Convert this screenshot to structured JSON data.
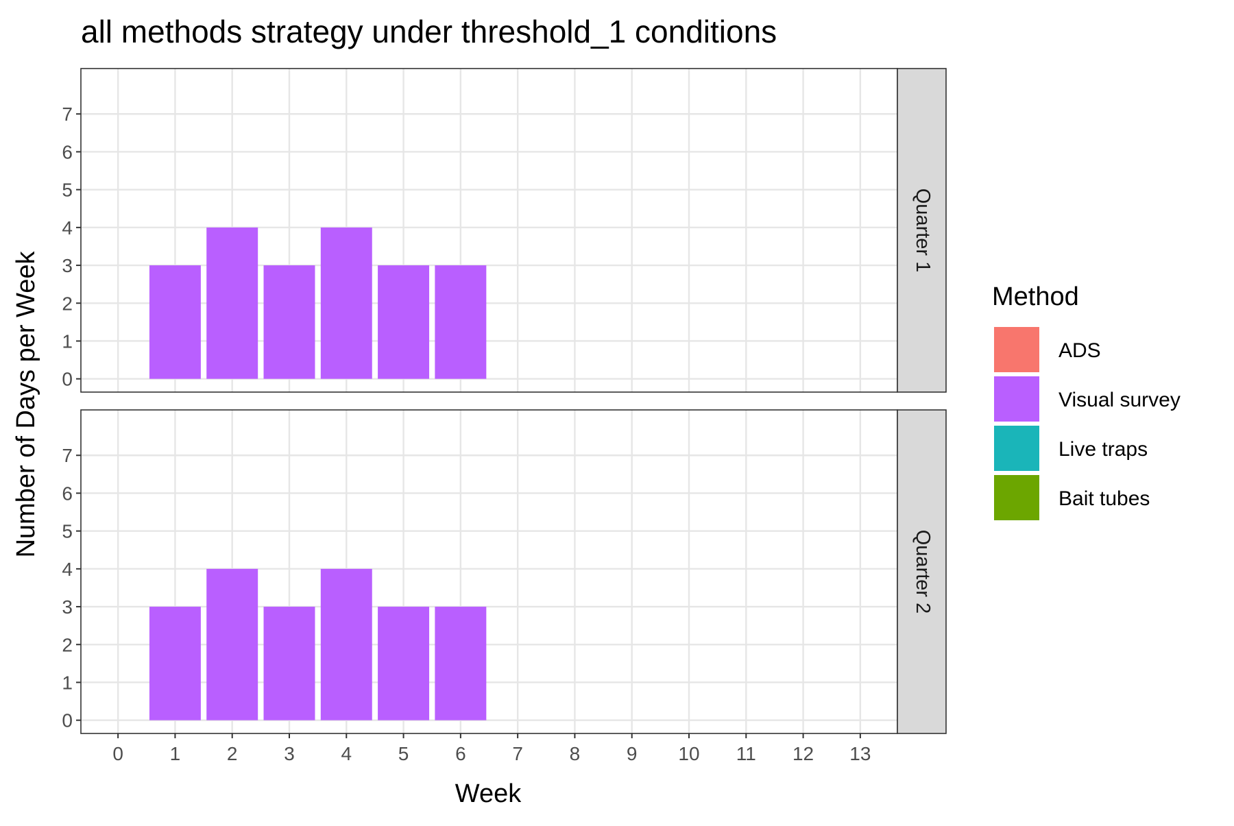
{
  "chart_data": {
    "type": "bar",
    "title": "all methods strategy under threshold_1 conditions",
    "xlabel": "Week",
    "ylabel": "Number of Days per Week",
    "xlim": [
      -0.65,
      13.65
    ],
    "ylim": [
      -0.35,
      8.2
    ],
    "x_ticks": [
      "0",
      "1",
      "2",
      "3",
      "4",
      "5",
      "6",
      "7",
      "8",
      "9",
      "10",
      "11",
      "12",
      "13"
    ],
    "y_ticks": [
      "0",
      "1",
      "2",
      "3",
      "4",
      "5",
      "6",
      "7"
    ],
    "grid": true,
    "legend": {
      "title": "Method",
      "position": "right",
      "items": [
        {
          "label": "ADS",
          "color": "#F8766D"
        },
        {
          "label": "Visual survey",
          "color": "#B95FFF"
        },
        {
          "label": "Live traps",
          "color": "#1AB5B9"
        },
        {
          "label": "Bait tubes",
          "color": "#6CA600"
        }
      ]
    },
    "facets": [
      {
        "label": "Quarter 1",
        "series": [
          {
            "name": "Visual survey",
            "x": [
              1,
              2,
              3,
              4,
              5,
              6
            ],
            "values": [
              3,
              4,
              3,
              4,
              3,
              3
            ]
          }
        ]
      },
      {
        "label": "Quarter 2",
        "series": [
          {
            "name": "Visual survey",
            "x": [
              1,
              2,
              3,
              4,
              5,
              6
            ],
            "values": [
              3,
              4,
              3,
              4,
              3,
              3
            ]
          }
        ]
      }
    ]
  }
}
